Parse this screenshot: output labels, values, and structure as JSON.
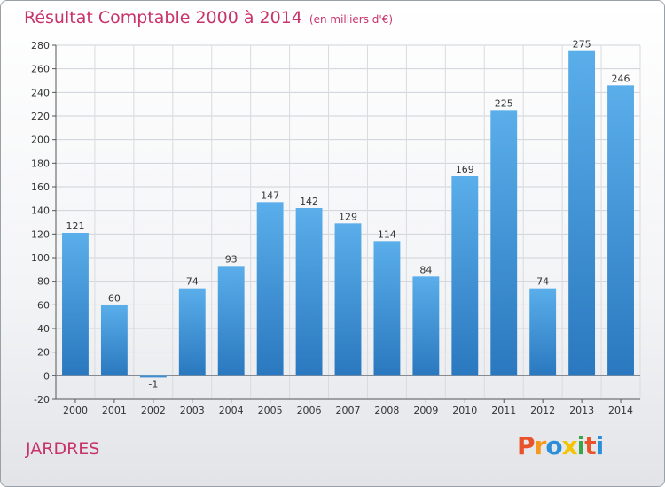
{
  "header": {
    "title": "Résultat Comptable 2000 à 2014",
    "unit": "(en milliers d'€)"
  },
  "footer": {
    "commune": "JARDRES",
    "logo_text": "Proxiti",
    "logo_colors": [
      "#e8532b",
      "#f39a1e",
      "#2a8fd8",
      "#f5c400",
      "#3aa64a",
      "#e8532b",
      "#2a8fd8"
    ]
  },
  "chart_data": {
    "type": "bar",
    "title": "Résultat Comptable 2000 à 2014",
    "xlabel": "",
    "ylabel": "",
    "categories": [
      "2000",
      "2001",
      "2002",
      "2003",
      "2004",
      "2005",
      "2006",
      "2007",
      "2008",
      "2009",
      "2010",
      "2011",
      "2012",
      "2013",
      "2014"
    ],
    "values": [
      121,
      60,
      -1,
      74,
      93,
      147,
      142,
      129,
      114,
      84,
      169,
      225,
      74,
      275,
      246
    ],
    "ylim": [
      -20,
      280
    ],
    "yticks": [
      -20,
      0,
      20,
      40,
      60,
      80,
      100,
      120,
      140,
      160,
      180,
      200,
      220,
      240,
      260,
      280
    ],
    "grid": true,
    "bar_color": "#4a9fe0",
    "bar_color_dark": "#2a78bf"
  }
}
